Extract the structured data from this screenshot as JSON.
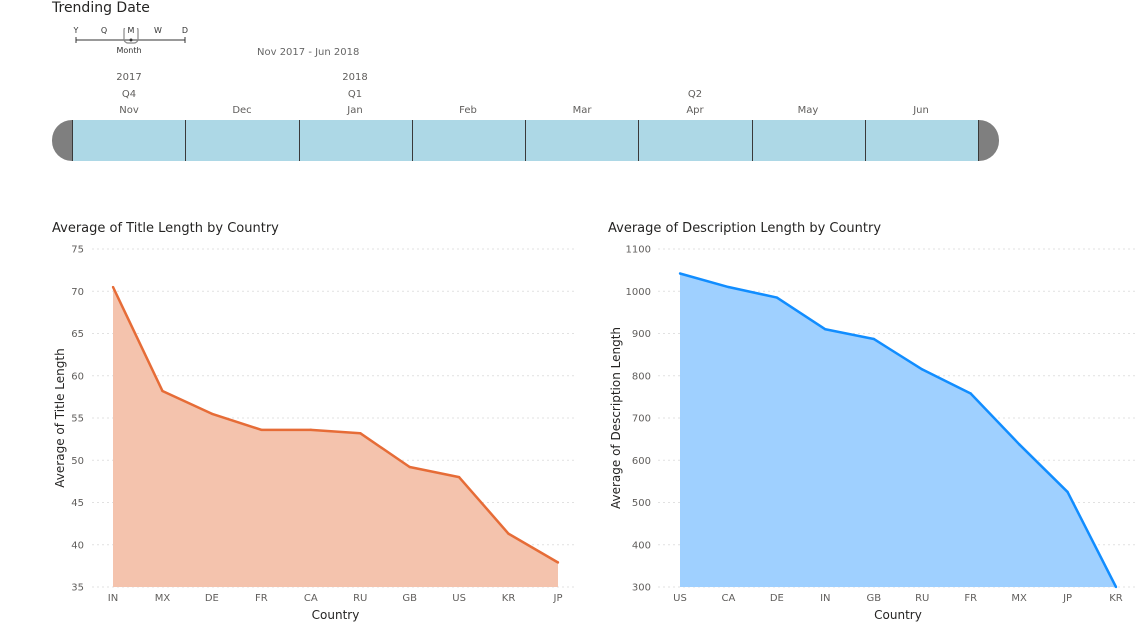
{
  "slicer": {
    "title": "Trending Date",
    "granularity": {
      "options": [
        "Y",
        "Q",
        "M",
        "W",
        "D"
      ],
      "selected": "M",
      "selected_label": "Month"
    },
    "range_label": "Nov 2017 - Jun 2018",
    "years": [
      {
        "label": "2017",
        "month_index": 0
      },
      {
        "label": "2018",
        "month_index": 2
      }
    ],
    "quarters": [
      {
        "label": "Q4",
        "month_index": 0
      },
      {
        "label": "Q1",
        "month_index": 2
      },
      {
        "label": "Q2",
        "month_index": 5
      }
    ],
    "months": [
      "Nov",
      "Dec",
      "Jan",
      "Feb",
      "Mar",
      "Apr",
      "May",
      "Jun"
    ],
    "fill_color": "#add8e6",
    "handle_color": "#7f7f7f"
  },
  "chart_data": [
    {
      "type": "area",
      "title": "Average of Title Length by Country",
      "xlabel": "Country",
      "ylabel": "Average of Title Length",
      "categories": [
        "IN",
        "MX",
        "DE",
        "FR",
        "CA",
        "RU",
        "GB",
        "US",
        "KR",
        "JP"
      ],
      "values": [
        70.5,
        58.2,
        55.5,
        53.6,
        53.6,
        53.2,
        49.2,
        48.0,
        41.3,
        37.9
      ],
      "ylim": [
        35,
        75
      ],
      "yticks": [
        35,
        40,
        45,
        50,
        55,
        60,
        65,
        70,
        75
      ],
      "grid": true,
      "line_color": "#e66c37",
      "fill_color": "#f4c3ad"
    },
    {
      "type": "area",
      "title": "Average of Description Length by Country",
      "xlabel": "Country",
      "ylabel": "Average of Description Length",
      "categories": [
        "US",
        "CA",
        "DE",
        "IN",
        "GB",
        "RU",
        "FR",
        "MX",
        "JP",
        "KR"
      ],
      "values": [
        1042,
        1010,
        985,
        910,
        887,
        815,
        758,
        638,
        525,
        300
      ],
      "ylim": [
        300,
        1100
      ],
      "yticks": [
        300,
        400,
        500,
        600,
        700,
        800,
        900,
        1000,
        1100
      ],
      "grid": true,
      "line_color": "#118dff",
      "fill_color": "#9fd0ff"
    }
  ]
}
